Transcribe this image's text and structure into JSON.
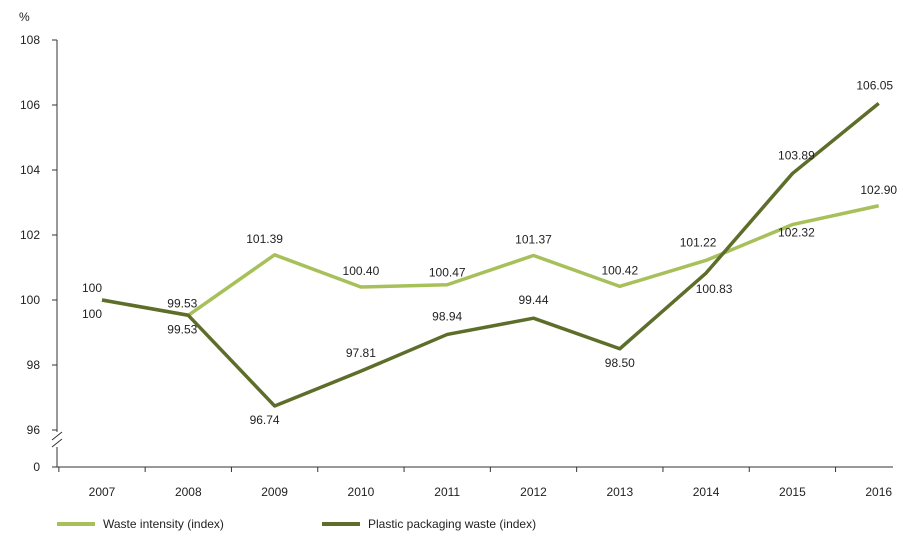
{
  "chart_data": {
    "type": "line",
    "title": "",
    "xlabel": "",
    "ylabel": "%",
    "x": [
      "2007",
      "2008",
      "2009",
      "2010",
      "2011",
      "2012",
      "2013",
      "2014",
      "2015",
      "2016"
    ],
    "y_ticks": [
      "108",
      "106",
      "104",
      "102",
      "100",
      "98",
      "96",
      "0"
    ],
    "ylim": [
      95,
      108
    ],
    "axis_break": true,
    "grid": false,
    "legend_position": "bottom-left",
    "series": [
      {
        "name": "Waste intensity (index)",
        "color": "#a7c05a",
        "values": [
          100,
          99.53,
          101.39,
          100.4,
          100.47,
          101.37,
          100.42,
          101.22,
          102.32,
          102.9
        ],
        "labels": [
          "100",
          "99.53",
          "101.39",
          "100.40",
          "100.47",
          "101.37",
          "100.42",
          "101.22",
          "102.32",
          "102.90"
        ]
      },
      {
        "name": "Plastic packaging waste (index)",
        "color": "#5c6e2a",
        "values": [
          100,
          99.53,
          96.74,
          97.81,
          98.94,
          99.44,
          98.5,
          100.83,
          103.89,
          106.05
        ],
        "labels": [
          "100",
          "99.53",
          "96.74",
          "97.81",
          "98.94",
          "99.44",
          "98.50",
          "100.83",
          "103.89",
          "106.05"
        ]
      }
    ]
  }
}
